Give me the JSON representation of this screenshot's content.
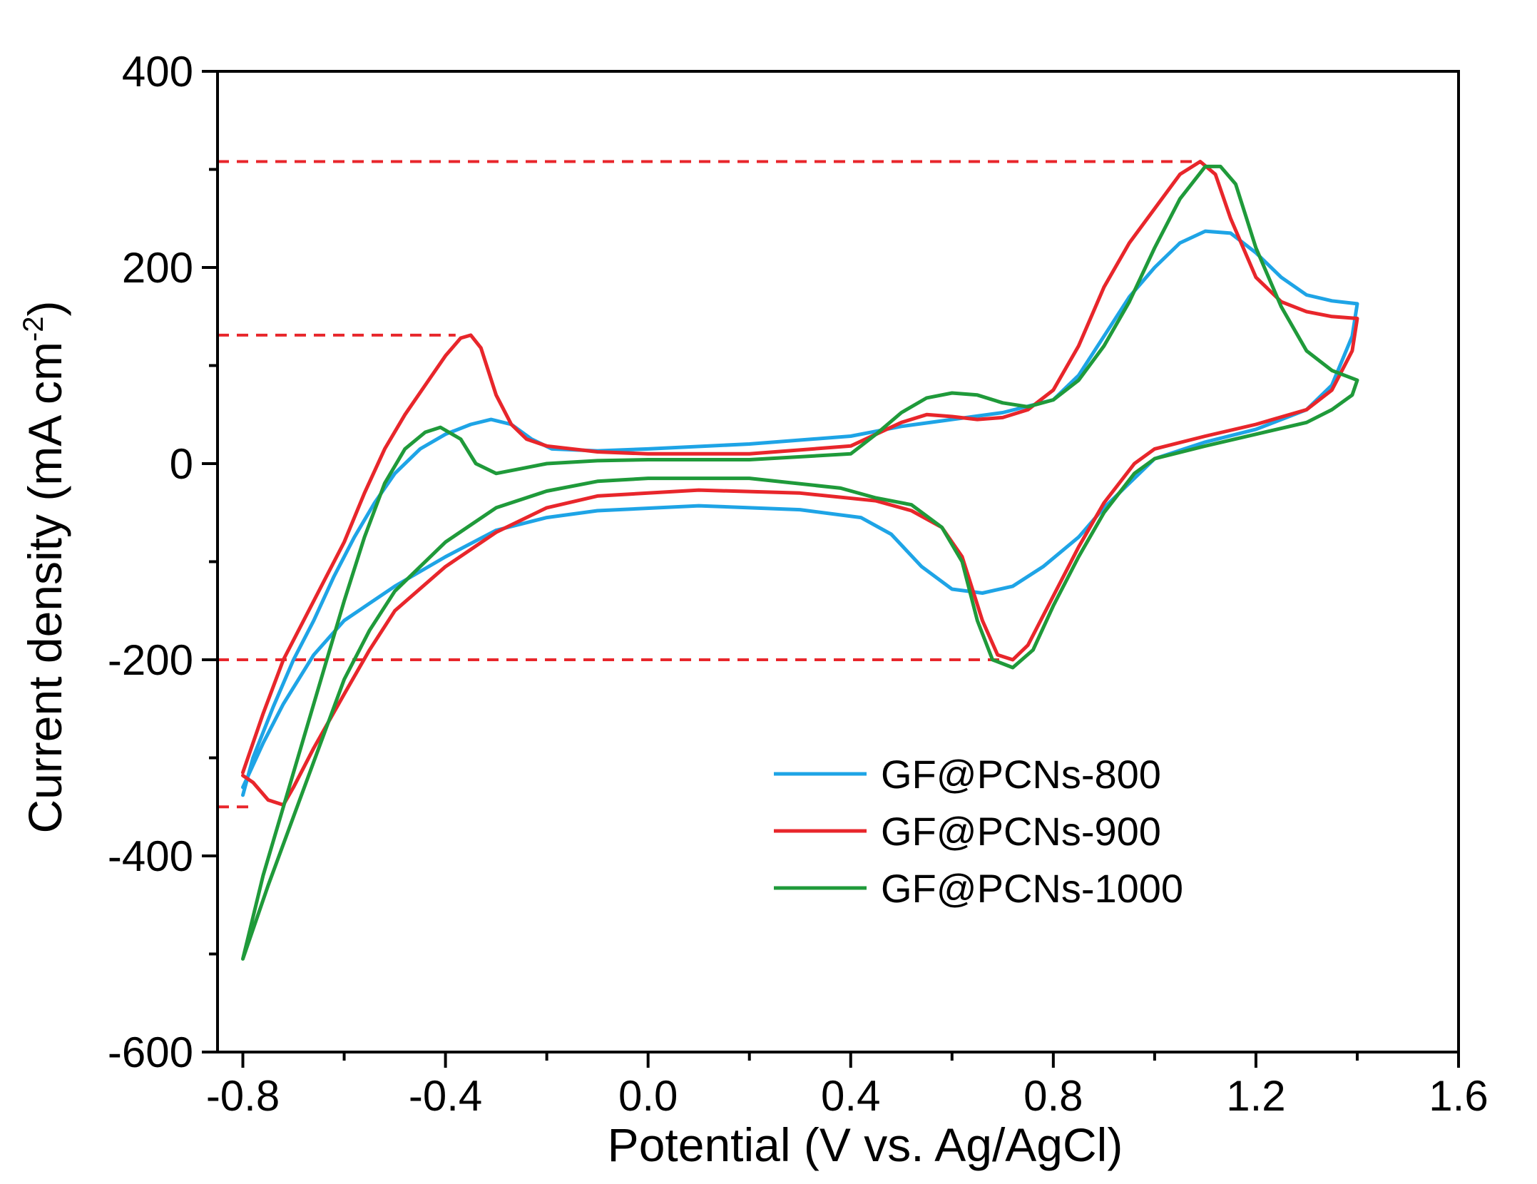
{
  "chart_data": {
    "type": "line",
    "xlabel": "Potential (V vs. Ag/AgCl)",
    "ylabel_main": "Current density (mA cm",
    "ylabel_sup": "-2",
    "ylabel_close": ")",
    "xlim": [
      -0.85,
      1.6
    ],
    "ylim": [
      -600,
      400
    ],
    "x_ticks": [
      -0.8,
      -0.4,
      0.0,
      0.4,
      0.8,
      1.2,
      1.6
    ],
    "x_tick_labels": [
      "-0.8",
      "-0.4",
      "0.0",
      "0.4",
      "0.8",
      "1.2",
      "1.6"
    ],
    "x_minor_ticks": [
      -0.6,
      -0.2,
      0.2,
      0.6,
      1.0,
      1.4
    ],
    "y_ticks": [
      -600,
      -400,
      -200,
      0,
      200,
      400
    ],
    "y_tick_labels": [
      "-600",
      "-400",
      "-200",
      "0",
      "200",
      "400"
    ],
    "y_minor_ticks": [
      -500,
      -300,
      -100,
      100,
      300
    ],
    "legend_position": "bottom-right",
    "reference_lines": [
      {
        "y": 308,
        "x_from": -0.85,
        "x_to": 1.09,
        "color": "#e8262b"
      },
      {
        "y": 131,
        "x_from": -0.85,
        "x_to": -0.38,
        "color": "#e8262b"
      },
      {
        "y": -200,
        "x_from": -0.85,
        "x_to": 0.7,
        "color": "#e8262b"
      },
      {
        "y": -350,
        "x_from": -0.85,
        "x_to": -0.78,
        "color": "#e8262b"
      }
    ],
    "series": [
      {
        "name": "GF@PCNs-800",
        "color": "#1ea4e6",
        "points": [
          [
            -0.8,
            -338
          ],
          [
            -0.78,
            -300
          ],
          [
            -0.74,
            -248
          ],
          [
            -0.7,
            -200
          ],
          [
            -0.66,
            -160
          ],
          [
            -0.62,
            -115
          ],
          [
            -0.58,
            -75
          ],
          [
            -0.54,
            -40
          ],
          [
            -0.5,
            -10
          ],
          [
            -0.45,
            15
          ],
          [
            -0.4,
            30
          ],
          [
            -0.35,
            40
          ],
          [
            -0.31,
            45
          ],
          [
            -0.27,
            40
          ],
          [
            -0.23,
            25
          ],
          [
            -0.19,
            15
          ],
          [
            -0.1,
            13
          ],
          [
            0.0,
            15
          ],
          [
            0.2,
            20
          ],
          [
            0.4,
            28
          ],
          [
            0.5,
            38
          ],
          [
            0.6,
            45
          ],
          [
            0.7,
            52
          ],
          [
            0.8,
            65
          ],
          [
            0.85,
            90
          ],
          [
            0.9,
            130
          ],
          [
            0.95,
            170
          ],
          [
            1.0,
            200
          ],
          [
            1.05,
            225
          ],
          [
            1.1,
            237
          ],
          [
            1.15,
            235
          ],
          [
            1.2,
            215
          ],
          [
            1.25,
            190
          ],
          [
            1.3,
            172
          ],
          [
            1.35,
            166
          ],
          [
            1.4,
            163
          ],
          [
            1.39,
            130
          ],
          [
            1.35,
            80
          ],
          [
            1.3,
            55
          ],
          [
            1.2,
            35
          ],
          [
            1.1,
            22
          ],
          [
            1.0,
            5
          ],
          [
            0.95,
            -20
          ],
          [
            0.9,
            -45
          ],
          [
            0.85,
            -75
          ],
          [
            0.78,
            -105
          ],
          [
            0.72,
            -125
          ],
          [
            0.66,
            -132
          ],
          [
            0.6,
            -128
          ],
          [
            0.54,
            -105
          ],
          [
            0.48,
            -72
          ],
          [
            0.42,
            -55
          ],
          [
            0.3,
            -47
          ],
          [
            0.1,
            -43
          ],
          [
            -0.1,
            -48
          ],
          [
            -0.2,
            -55
          ],
          [
            -0.3,
            -68
          ],
          [
            -0.4,
            -95
          ],
          [
            -0.5,
            -125
          ],
          [
            -0.6,
            -160
          ],
          [
            -0.66,
            -195
          ],
          [
            -0.72,
            -245
          ],
          [
            -0.76,
            -285
          ],
          [
            -0.8,
            -330
          ]
        ]
      },
      {
        "name": "GF@PCNs-900",
        "color": "#e8262b",
        "points": [
          [
            -0.8,
            -315
          ],
          [
            -0.76,
            -255
          ],
          [
            -0.72,
            -200
          ],
          [
            -0.68,
            -160
          ],
          [
            -0.64,
            -120
          ],
          [
            -0.6,
            -80
          ],
          [
            -0.56,
            -30
          ],
          [
            -0.52,
            15
          ],
          [
            -0.48,
            50
          ],
          [
            -0.44,
            80
          ],
          [
            -0.4,
            110
          ],
          [
            -0.37,
            128
          ],
          [
            -0.35,
            131
          ],
          [
            -0.33,
            118
          ],
          [
            -0.3,
            70
          ],
          [
            -0.27,
            40
          ],
          [
            -0.24,
            25
          ],
          [
            -0.2,
            18
          ],
          [
            -0.1,
            12
          ],
          [
            0.0,
            10
          ],
          [
            0.2,
            10
          ],
          [
            0.4,
            18
          ],
          [
            0.45,
            30
          ],
          [
            0.5,
            42
          ],
          [
            0.55,
            50
          ],
          [
            0.6,
            48
          ],
          [
            0.65,
            45
          ],
          [
            0.7,
            47
          ],
          [
            0.75,
            55
          ],
          [
            0.8,
            75
          ],
          [
            0.85,
            120
          ],
          [
            0.9,
            180
          ],
          [
            0.95,
            225
          ],
          [
            1.0,
            260
          ],
          [
            1.05,
            295
          ],
          [
            1.09,
            308
          ],
          [
            1.12,
            295
          ],
          [
            1.15,
            250
          ],
          [
            1.2,
            190
          ],
          [
            1.25,
            165
          ],
          [
            1.3,
            155
          ],
          [
            1.35,
            150
          ],
          [
            1.4,
            148
          ],
          [
            1.39,
            115
          ],
          [
            1.35,
            75
          ],
          [
            1.3,
            55
          ],
          [
            1.2,
            40
          ],
          [
            1.1,
            28
          ],
          [
            1.0,
            15
          ],
          [
            0.96,
            0
          ],
          [
            0.9,
            -40
          ],
          [
            0.85,
            -85
          ],
          [
            0.8,
            -135
          ],
          [
            0.75,
            -185
          ],
          [
            0.72,
            -200
          ],
          [
            0.69,
            -195
          ],
          [
            0.66,
            -160
          ],
          [
            0.62,
            -95
          ],
          [
            0.58,
            -65
          ],
          [
            0.52,
            -48
          ],
          [
            0.45,
            -38
          ],
          [
            0.3,
            -30
          ],
          [
            0.1,
            -27
          ],
          [
            -0.1,
            -33
          ],
          [
            -0.2,
            -45
          ],
          [
            -0.3,
            -70
          ],
          [
            -0.4,
            -105
          ],
          [
            -0.5,
            -150
          ],
          [
            -0.55,
            -190
          ],
          [
            -0.6,
            -235
          ],
          [
            -0.66,
            -290
          ],
          [
            -0.7,
            -330
          ],
          [
            -0.72,
            -348
          ],
          [
            -0.75,
            -343
          ],
          [
            -0.78,
            -325
          ],
          [
            -0.8,
            -318
          ]
        ]
      },
      {
        "name": "GF@PCNs-1000",
        "color": "#1f9a3a",
        "points": [
          [
            -0.8,
            -505
          ],
          [
            -0.76,
            -420
          ],
          [
            -0.72,
            -350
          ],
          [
            -0.68,
            -280
          ],
          [
            -0.64,
            -210
          ],
          [
            -0.6,
            -140
          ],
          [
            -0.56,
            -75
          ],
          [
            -0.52,
            -20
          ],
          [
            -0.48,
            15
          ],
          [
            -0.44,
            32
          ],
          [
            -0.41,
            37
          ],
          [
            -0.37,
            25
          ],
          [
            -0.34,
            0
          ],
          [
            -0.3,
            -10
          ],
          [
            -0.25,
            -5
          ],
          [
            -0.2,
            0
          ],
          [
            -0.1,
            3
          ],
          [
            0.0,
            4
          ],
          [
            0.2,
            4
          ],
          [
            0.4,
            10
          ],
          [
            0.45,
            30
          ],
          [
            0.5,
            52
          ],
          [
            0.55,
            67
          ],
          [
            0.6,
            72
          ],
          [
            0.65,
            70
          ],
          [
            0.7,
            62
          ],
          [
            0.75,
            58
          ],
          [
            0.8,
            65
          ],
          [
            0.85,
            85
          ],
          [
            0.9,
            120
          ],
          [
            0.95,
            165
          ],
          [
            1.0,
            220
          ],
          [
            1.05,
            270
          ],
          [
            1.1,
            303
          ],
          [
            1.13,
            303
          ],
          [
            1.16,
            285
          ],
          [
            1.2,
            220
          ],
          [
            1.25,
            160
          ],
          [
            1.3,
            115
          ],
          [
            1.35,
            95
          ],
          [
            1.4,
            85
          ],
          [
            1.39,
            70
          ],
          [
            1.35,
            55
          ],
          [
            1.3,
            42
          ],
          [
            1.2,
            30
          ],
          [
            1.1,
            18
          ],
          [
            1.0,
            5
          ],
          [
            0.96,
            -10
          ],
          [
            0.9,
            -50
          ],
          [
            0.85,
            -95
          ],
          [
            0.8,
            -145
          ],
          [
            0.76,
            -190
          ],
          [
            0.72,
            -208
          ],
          [
            0.68,
            -200
          ],
          [
            0.65,
            -160
          ],
          [
            0.62,
            -100
          ],
          [
            0.58,
            -65
          ],
          [
            0.52,
            -42
          ],
          [
            0.45,
            -35
          ],
          [
            0.38,
            -25
          ],
          [
            0.2,
            -15
          ],
          [
            0.0,
            -15
          ],
          [
            -0.1,
            -18
          ],
          [
            -0.2,
            -28
          ],
          [
            -0.3,
            -45
          ],
          [
            -0.4,
            -80
          ],
          [
            -0.5,
            -130
          ],
          [
            -0.55,
            -170
          ],
          [
            -0.6,
            -220
          ],
          [
            -0.65,
            -290
          ],
          [
            -0.7,
            -360
          ],
          [
            -0.75,
            -430
          ],
          [
            -0.8,
            -505
          ]
        ]
      }
    ]
  }
}
